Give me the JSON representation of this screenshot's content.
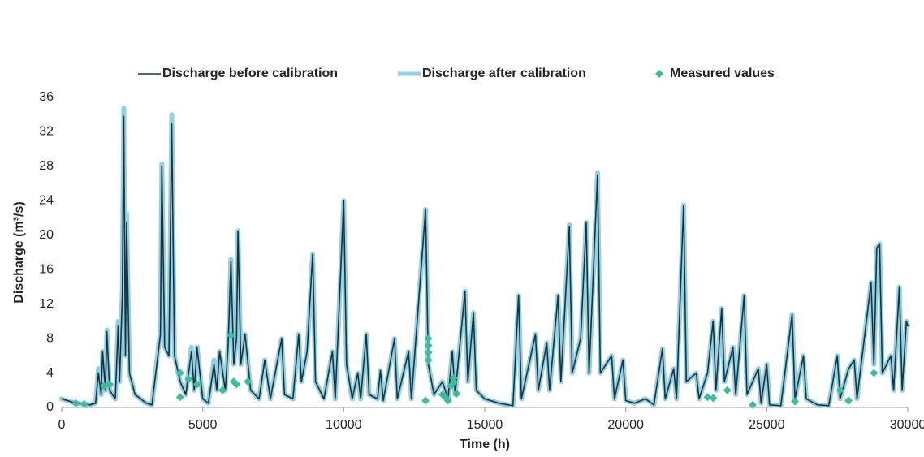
{
  "chart_data": {
    "type": "line",
    "xlabel": "Time (h)",
    "ylabel": "Discharge (m³/s)",
    "xlim": [
      0,
      30000
    ],
    "xticks": [
      0,
      5000,
      10000,
      15000,
      20000,
      25000,
      30000
    ],
    "ylim": [
      0,
      36
    ],
    "yticks": [
      0,
      4,
      8,
      12,
      16,
      20,
      24,
      28,
      32,
      36
    ],
    "grid": false,
    "legend": "top",
    "x": [
      0,
      500,
      1000,
      1200,
      1300,
      1400,
      1450,
      1550,
      1600,
      1700,
      1900,
      2000,
      2050,
      2150,
      2200,
      2260,
      2300,
      2400,
      2600,
      2800,
      3000,
      3200,
      3500,
      3550,
      3650,
      3800,
      3900,
      4000,
      4200,
      4400,
      4600,
      4700,
      4800,
      5000,
      5200,
      5400,
      5500,
      5600,
      5800,
      5900,
      6000,
      6100,
      6200,
      6250,
      6350,
      6500,
      6700,
      7000,
      7200,
      7400,
      7800,
      7900,
      8200,
      8400,
      8500,
      8700,
      8900,
      9000,
      9300,
      9600,
      9700,
      10000,
      10100,
      10300,
      10500,
      10600,
      10800,
      10900,
      11200,
      11300,
      11400,
      11800,
      11900,
      12300,
      12400,
      12900,
      13000,
      13200,
      13500,
      13700,
      13850,
      13950,
      14300,
      14400,
      14600,
      14700,
      15000,
      15500,
      16000,
      16200,
      16300,
      16800,
      16900,
      17200,
      17300,
      17600,
      17700,
      18000,
      18100,
      18400,
      18600,
      18700,
      19000,
      19100,
      19500,
      19600,
      19900,
      20000,
      20300,
      20700,
      21000,
      21300,
      21400,
      21700,
      21800,
      22050,
      22150,
      22500,
      22600,
      22900,
      23100,
      23200,
      23400,
      23500,
      23800,
      23900,
      24200,
      24300,
      24700,
      24800,
      25000,
      25100,
      25500,
      25900,
      26000,
      26300,
      26400,
      26800,
      27200,
      27500,
      27600,
      27900,
      28100,
      28200,
      28700,
      28800,
      28900,
      29000,
      29100,
      29400,
      29500,
      29700,
      29800,
      29950,
      30000
    ],
    "series": [
      {
        "name": "Discharge before calibration",
        "color": "#1b3340",
        "width": 1.6,
        "values": [
          1.0,
          0.5,
          0.3,
          0.5,
          4,
          1.5,
          6.5,
          2,
          8.8,
          2,
          1,
          9.5,
          3,
          13,
          33.8,
          6,
          21.5,
          4,
          1.5,
          1,
          0.5,
          0.3,
          8.5,
          28,
          7,
          6,
          33,
          6,
          3,
          1.5,
          6.5,
          2,
          7,
          1,
          0.5,
          5,
          2,
          6.5,
          2,
          7,
          17,
          5,
          8,
          20.5,
          5,
          8.5,
          2,
          1,
          5.5,
          1,
          8,
          1.5,
          1,
          8.5,
          3,
          6.5,
          17.8,
          3,
          1,
          6.5,
          1,
          24,
          5,
          1,
          4,
          1,
          8.5,
          1.5,
          1,
          4.3,
          0.8,
          8,
          1,
          6.5,
          1,
          23,
          5,
          1.5,
          3,
          1,
          6.5,
          1.5,
          13.5,
          3,
          11,
          2,
          1,
          0.5,
          0.2,
          13,
          1,
          8.5,
          2,
          7.5,
          2,
          13,
          3,
          21,
          4,
          8,
          21.5,
          4,
          27,
          4,
          6,
          1,
          5.5,
          0.8,
          0.5,
          1,
          0.3,
          6.8,
          1,
          4.5,
          1,
          23.5,
          3,
          4,
          1,
          4,
          10,
          2,
          11.5,
          3,
          7,
          1.5,
          13,
          1.5,
          4.5,
          0.5,
          5,
          0.3,
          0.2,
          10.8,
          1,
          6,
          1,
          0.3,
          0.2,
          6,
          1,
          4.5,
          5.5,
          1,
          14.5,
          5,
          18.5,
          19,
          4,
          6,
          2,
          14,
          2,
          10,
          9.5
        ]
      },
      {
        "name": "Discharge after calibration",
        "color": "#92d0e2",
        "width": 6,
        "values": [
          1.0,
          0.5,
          0.3,
          0.5,
          4.5,
          1.5,
          6.5,
          2,
          9,
          2,
          1,
          10,
          3,
          13.5,
          34.8,
          6,
          22.5,
          4,
          1.5,
          1,
          0.5,
          0.3,
          9,
          28.3,
          7,
          6,
          34,
          6,
          3,
          1.5,
          7,
          2,
          7,
          1,
          0.5,
          5.5,
          2,
          6.5,
          2,
          7.5,
          17.2,
          5,
          8,
          20.5,
          5,
          8.5,
          2,
          1,
          5.5,
          1,
          8,
          1.5,
          1,
          8.5,
          3,
          6.5,
          17.8,
          3,
          1,
          6.5,
          1,
          24,
          5,
          1,
          4,
          1,
          8.5,
          1.5,
          1,
          4.3,
          0.8,
          8,
          1,
          6.5,
          1,
          23,
          5,
          1.5,
          3,
          1,
          6.5,
          1.5,
          13.5,
          3,
          11,
          2,
          1,
          0.5,
          0.2,
          13,
          1,
          8.5,
          2,
          7.5,
          2,
          13,
          3,
          21.2,
          4,
          8,
          21.5,
          4,
          27.2,
          4,
          6,
          1,
          5.5,
          0.8,
          0.5,
          1,
          0.3,
          6.8,
          1,
          4.5,
          1,
          23.5,
          3,
          4,
          1,
          4,
          10,
          2,
          11.5,
          3,
          7,
          1.5,
          13,
          1.5,
          4.5,
          0.5,
          5,
          0.3,
          0.2,
          10.8,
          1,
          6,
          1,
          0.3,
          0.2,
          6,
          1,
          4.5,
          5.5,
          1,
          14.5,
          5,
          18.5,
          19,
          4,
          6,
          2,
          14,
          2,
          10,
          9.5
        ]
      },
      {
        "name": "Measured values",
        "color": "#3dbd9a",
        "type": "scatter",
        "x": [
          500,
          800,
          1500,
          1650,
          1700,
          4200,
          4200,
          4500,
          4800,
          5700,
          6000,
          6100,
          6200,
          6600,
          12900,
          13000,
          13000,
          13000,
          13000,
          13500,
          13600,
          13700,
          13800,
          13900,
          13900,
          14000,
          22900,
          23100,
          23600,
          24500,
          26000,
          27600,
          27900,
          28800
        ],
        "values": [
          0.5,
          0.4,
          2.5,
          2.7,
          2.7,
          4,
          1.2,
          3.3,
          2.7,
          2,
          8.4,
          3,
          2.7,
          3,
          0.8,
          8,
          7.2,
          6.4,
          5.5,
          1.5,
          1.2,
          0.8,
          2.5,
          3.4,
          3,
          1.6,
          1.2,
          1.1,
          2,
          0.3,
          0.7,
          2,
          0.8,
          4
        ]
      }
    ]
  }
}
